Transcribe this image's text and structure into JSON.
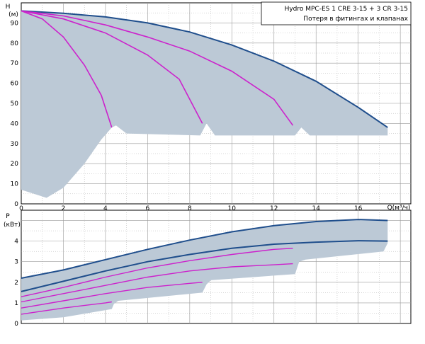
{
  "legend": {
    "line1": "Hydro MPC-ES 1 CRE 3-15  +  3 CR 3-15",
    "line2": "Потеря в фитингах и клапанах"
  },
  "colors": {
    "grid": "#9a9a9a",
    "band": "#bcc9d6",
    "curve_main": "#1f4e8c",
    "curve_partial": "#cc22cc",
    "axis": "#000000"
  },
  "chart_data": [
    {
      "type": "line",
      "name": "head",
      "ylabel": "H",
      "yunit": "(м)",
      "xlabel": "Q(м³/ч)",
      "xlim": [
        0,
        18.5
      ],
      "ylim": [
        0,
        100
      ],
      "xticks": [
        0,
        2,
        4,
        6,
        8,
        10,
        12,
        14,
        16
      ],
      "yticks": [
        0,
        10,
        20,
        30,
        40,
        50,
        60,
        70,
        80,
        90
      ],
      "grid": true,
      "legend_position": "top-right",
      "series": [
        {
          "style": "main",
          "x": [
            0,
            2,
            4,
            6,
            8,
            10,
            12,
            14,
            16,
            17.4
          ],
          "y": [
            96,
            94.8,
            93,
            90,
            85.5,
            79,
            71,
            61,
            48,
            38
          ]
        },
        {
          "style": "partial",
          "x": [
            0,
            1,
            2,
            3,
            3.8,
            4.3
          ],
          "y": [
            96,
            92,
            83,
            69,
            54,
            38
          ]
        },
        {
          "style": "partial",
          "x": [
            0,
            2,
            4,
            6,
            7.5,
            8.6
          ],
          "y": [
            96,
            92,
            85,
            74,
            62,
            40
          ]
        },
        {
          "style": "partial",
          "x": [
            0,
            2,
            4,
            6,
            8,
            10,
            12,
            12.9
          ],
          "y": [
            96,
            93.5,
            89,
            83,
            76,
            66,
            52,
            39
          ]
        }
      ],
      "shading": {
        "upper": {
          "x": [
            0,
            2,
            4,
            6,
            8,
            10,
            12,
            14,
            16,
            17.4
          ],
          "y": [
            96,
            94.8,
            93,
            90,
            85.5,
            79,
            71,
            61,
            48,
            38
          ]
        },
        "lower": {
          "x": [
            0,
            0.6,
            1.2,
            2,
            3,
            3.8,
            4.3,
            4.5,
            5,
            8.5,
            8.8,
            9.2,
            13,
            13.3,
            13.7,
            17.4
          ],
          "y": [
            7,
            5,
            3,
            8,
            20,
            32,
            38,
            39,
            35,
            34,
            40,
            34,
            34,
            38,
            34,
            34
          ]
        }
      }
    },
    {
      "type": "line",
      "name": "power",
      "ylabel": "P",
      "yunit": "(кВт)",
      "xlim": [
        0,
        18.5
      ],
      "ylim": [
        0,
        5.5
      ],
      "yticks": [
        0,
        1,
        2,
        3,
        4
      ],
      "grid": true,
      "series": [
        {
          "style": "main",
          "x": [
            0,
            2,
            4,
            6,
            8,
            10,
            12,
            14,
            16,
            17.4
          ],
          "y": [
            2.2,
            2.6,
            3.1,
            3.6,
            4.05,
            4.45,
            4.75,
            4.95,
            5.05,
            5.0
          ]
        },
        {
          "style": "main",
          "x": [
            0,
            2,
            4,
            6,
            8,
            10,
            12,
            14,
            16,
            17.4
          ],
          "y": [
            1.55,
            2.05,
            2.55,
            3.0,
            3.35,
            3.65,
            3.85,
            3.95,
            4.02,
            4.0
          ]
        },
        {
          "style": "partial",
          "x": [
            0,
            2,
            4,
            6,
            8,
            10,
            12,
            12.9
          ],
          "y": [
            1.3,
            1.75,
            2.25,
            2.7,
            3.05,
            3.35,
            3.6,
            3.65
          ]
        },
        {
          "style": "partial",
          "x": [
            0,
            2,
            4,
            6,
            8,
            10,
            12,
            12.9
          ],
          "y": [
            1.05,
            1.45,
            1.85,
            2.25,
            2.55,
            2.75,
            2.85,
            2.9
          ]
        },
        {
          "style": "partial",
          "x": [
            0,
            2,
            4,
            6,
            8,
            8.6
          ],
          "y": [
            0.75,
            1.1,
            1.45,
            1.75,
            1.95,
            2.0
          ]
        },
        {
          "style": "partial",
          "x": [
            0,
            2,
            4,
            4.3
          ],
          "y": [
            0.45,
            0.75,
            1.0,
            1.05
          ]
        }
      ],
      "shading": {
        "upper": {
          "x": [
            0,
            2,
            4,
            6,
            8,
            10,
            12,
            14,
            16,
            17.4
          ],
          "y": [
            2.2,
            2.6,
            3.1,
            3.6,
            4.05,
            4.45,
            4.75,
            4.95,
            5.05,
            5.0
          ]
        },
        "lower": {
          "x": [
            17.4,
            17.4,
            17.2,
            13.5,
            13.2,
            13.0,
            9.0,
            8.8,
            8.6,
            4.6,
            4.4,
            4.3,
            2,
            0
          ],
          "y": [
            4.6,
            3.9,
            3.5,
            3.1,
            3.0,
            2.4,
            2.1,
            1.9,
            1.5,
            1.1,
            0.95,
            0.7,
            0.3,
            0.15
          ]
        }
      }
    }
  ]
}
